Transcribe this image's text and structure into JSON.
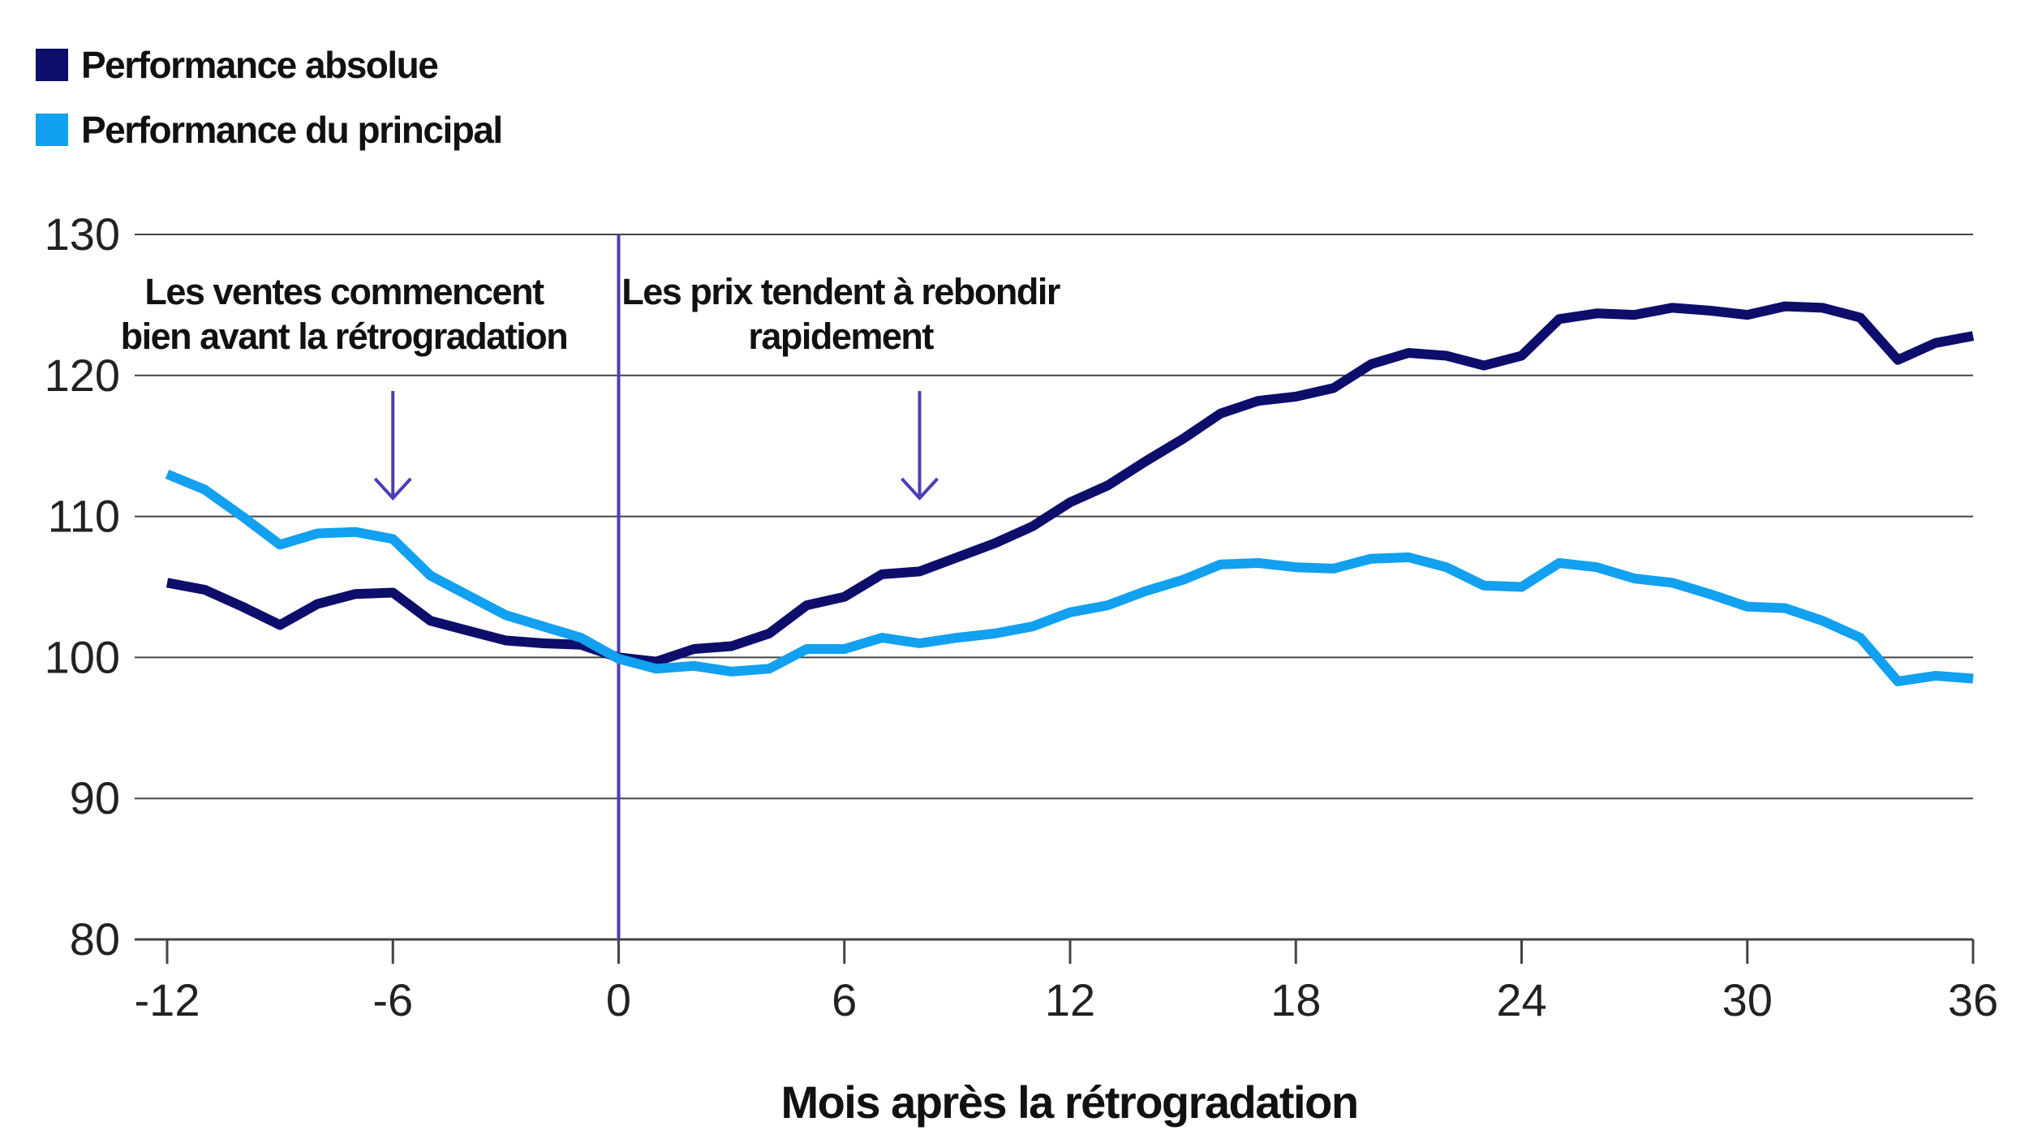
{
  "chart_data": {
    "type": "line",
    "xlabel": "Mois après la rétrogradation",
    "ylabel": "",
    "xlim": [
      -12,
      36
    ],
    "ylim": [
      80,
      130
    ],
    "x_ticks": [
      -12,
      -6,
      0,
      6,
      12,
      18,
      24,
      30,
      36
    ],
    "y_ticks": [
      80,
      90,
      100,
      110,
      120,
      130
    ],
    "grid": "horizontal",
    "legend_position": "top-left",
    "vertical_marker_x": 0,
    "x": [
      -12,
      -11,
      -10,
      -9,
      -8,
      -7,
      -6,
      -5,
      -4,
      -3,
      -2,
      -1,
      0,
      1,
      2,
      3,
      4,
      5,
      6,
      7,
      8,
      9,
      10,
      11,
      12,
      13,
      14,
      15,
      16,
      17,
      18,
      19,
      20,
      21,
      22,
      23,
      24,
      25,
      26,
      27,
      28,
      29,
      30,
      31,
      32,
      33,
      34,
      35,
      36
    ],
    "series": [
      {
        "name": "Performance absolue",
        "color": "#0d0d6b",
        "values": [
          105.3,
          104.8,
          103.6,
          102.3,
          103.8,
          104.5,
          104.6,
          102.6,
          101.9,
          101.2,
          101.0,
          100.9,
          100.0,
          99.7,
          100.6,
          100.8,
          101.7,
          103.7,
          104.3,
          105.9,
          106.1,
          107.1,
          108.1,
          109.3,
          111.0,
          112.2,
          113.9,
          115.5,
          117.3,
          118.2,
          118.5,
          119.1,
          120.8,
          121.6,
          121.4,
          120.7,
          121.4,
          124.0,
          124.4,
          124.3,
          124.8,
          124.6,
          124.3,
          124.9,
          124.8,
          124.1,
          121.1,
          122.3,
          122.8
        ]
      },
      {
        "name": "Performance du principal",
        "color": "#12a0f0",
        "values": [
          113.0,
          111.9,
          110.0,
          108.0,
          108.8,
          108.9,
          108.4,
          105.8,
          104.4,
          103.0,
          102.2,
          101.4,
          99.9,
          99.2,
          99.4,
          99.0,
          99.2,
          100.6,
          100.6,
          101.4,
          101.0,
          101.4,
          101.7,
          102.2,
          103.2,
          103.7,
          104.7,
          105.5,
          106.6,
          106.7,
          106.4,
          106.3,
          107.0,
          107.1,
          106.4,
          105.1,
          105.0,
          106.7,
          106.4,
          105.6,
          105.3,
          104.5,
          103.6,
          103.5,
          102.6,
          101.4,
          98.3,
          98.7,
          98.5
        ]
      }
    ],
    "annotations": [
      {
        "text_lines": [
          "Les ventes commencent",
          "bien avant la rétrogradation"
        ],
        "arrow_x": -6
      },
      {
        "text_lines": [
          "Les prix tendent à rebondir",
          "rapidement"
        ],
        "arrow_x": 8
      }
    ],
    "colors": {
      "vertical_marker": "#4b3fb5",
      "arrow": "#4b3fb5",
      "grid": "#444444"
    }
  }
}
